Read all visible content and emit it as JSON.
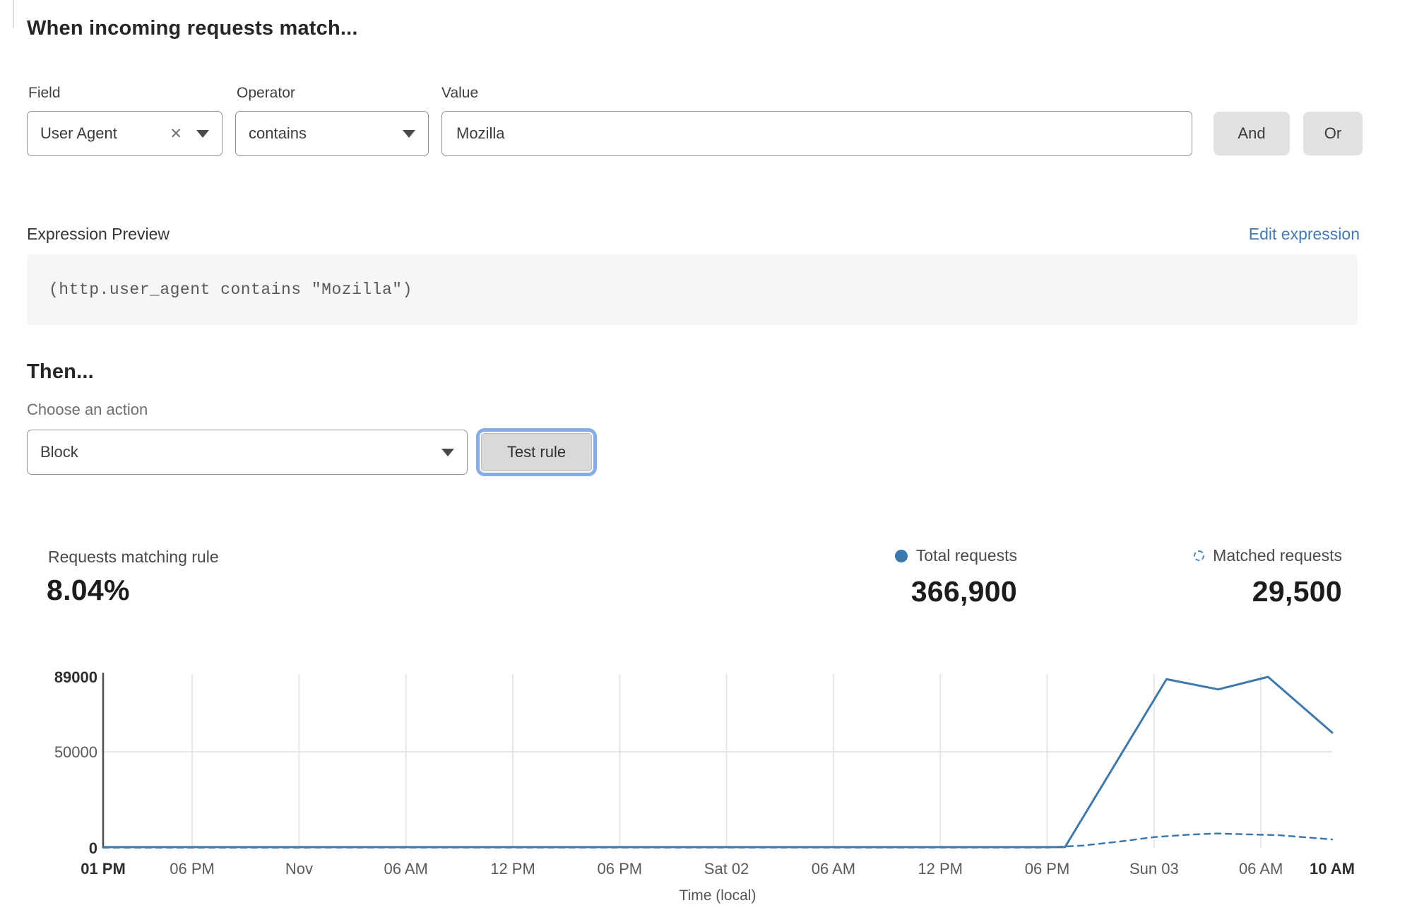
{
  "rule_builder": {
    "heading": "When incoming requests match...",
    "field": {
      "label": "Field",
      "value": "User Agent"
    },
    "operator": {
      "label": "Operator",
      "value": "contains"
    },
    "value": {
      "label": "Value",
      "value": "Mozilla"
    },
    "and_label": "And",
    "or_label": "Or"
  },
  "expression": {
    "label": "Expression Preview",
    "edit_link": "Edit expression",
    "code": "(http.user_agent contains \"Mozilla\")"
  },
  "action": {
    "heading": "Then...",
    "choose_label": "Choose an action",
    "selected": "Block",
    "test_button": "Test rule"
  },
  "stats": {
    "matching_label": "Requests matching rule",
    "matching_value": "8.04%",
    "total_label": "Total requests",
    "total_value": "366,900",
    "matched_label": "Matched requests",
    "matched_value": "29,500"
  },
  "colors": {
    "line_blue": "#3e79ad",
    "link_blue": "#4479b2",
    "gridline": "#e7e7e7",
    "axis": "#4d4d4d",
    "tick_regular": "#5a5a5a",
    "tick_bold": "#2e2e2e"
  },
  "chart_data": {
    "type": "line",
    "title": "",
    "xlabel": "Time (local)",
    "ylabel": "",
    "x_unit": "hours elapsed from first tick (01 PM Thu) to last (10 AM Sun 03)",
    "x_range": [
      0,
      69
    ],
    "ylim": [
      0,
      89000
    ],
    "grid": true,
    "legend_position": "top-right above chart",
    "y_ticks": [
      {
        "value": 0,
        "label": "0",
        "bold": true
      },
      {
        "value": 50000,
        "label": "50000",
        "bold": false
      },
      {
        "value": 89000,
        "label": "89000",
        "bold": true
      }
    ],
    "x_ticks": [
      {
        "hour": 0,
        "label": "01 PM",
        "bold": true
      },
      {
        "hour": 5,
        "label": "06 PM",
        "bold": false
      },
      {
        "hour": 11,
        "label": "Nov",
        "bold": false
      },
      {
        "hour": 17,
        "label": "06 AM",
        "bold": false
      },
      {
        "hour": 23,
        "label": "12 PM",
        "bold": false
      },
      {
        "hour": 29,
        "label": "06 PM",
        "bold": false
      },
      {
        "hour": 35,
        "label": "Sat 02",
        "bold": false
      },
      {
        "hour": 41,
        "label": "06 AM",
        "bold": false
      },
      {
        "hour": 47,
        "label": "12 PM",
        "bold": false
      },
      {
        "hour": 53,
        "label": "06 PM",
        "bold": false
      },
      {
        "hour": 59,
        "label": "Sun 03",
        "bold": false
      },
      {
        "hour": 65,
        "label": "06 AM",
        "bold": false
      },
      {
        "hour": 69,
        "label": "10 AM",
        "bold": true
      }
    ],
    "series": [
      {
        "name": "Total requests",
        "style": "solid",
        "color": "#3e79ad",
        "points": [
          [
            0,
            400
          ],
          [
            54,
            400
          ],
          [
            59.7,
            87800
          ],
          [
            62.6,
            82500
          ],
          [
            65.4,
            89000
          ],
          [
            69,
            60000
          ]
        ]
      },
      {
        "name": "Matched requests",
        "style": "dashed",
        "color": "#3e79ad",
        "points": [
          [
            0,
            150
          ],
          [
            53,
            200
          ],
          [
            55,
            1200
          ],
          [
            57,
            3200
          ],
          [
            59,
            5600
          ],
          [
            61,
            6900
          ],
          [
            62.5,
            7500
          ],
          [
            64,
            7100
          ],
          [
            66,
            6600
          ],
          [
            67.5,
            5500
          ],
          [
            69,
            4400
          ]
        ]
      }
    ]
  }
}
